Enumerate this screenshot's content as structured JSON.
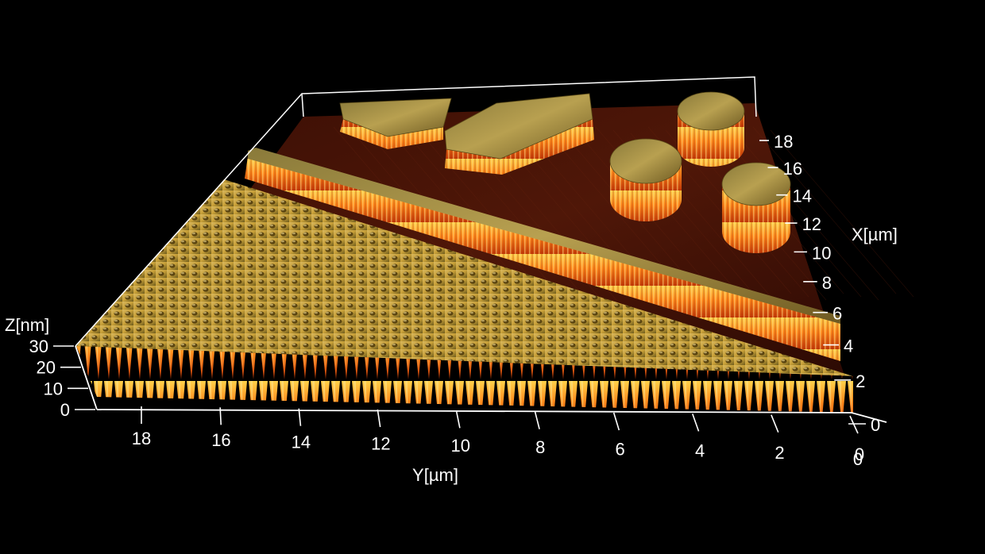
{
  "chart_data": {
    "type": "surface-3d",
    "title": "",
    "axes": {
      "x": {
        "label": "X[µm]",
        "ticks": [
          "0",
          "2",
          "4",
          "6",
          "8",
          "10",
          "12",
          "14",
          "16",
          "18"
        ],
        "range": [
          0,
          20
        ]
      },
      "y": {
        "label": "Y[µm]",
        "ticks": [
          "0",
          "2",
          "4",
          "6",
          "8",
          "10",
          "12",
          "14",
          "16",
          "18"
        ],
        "range": [
          0,
          20
        ]
      },
      "z": {
        "label": "Z[nm]",
        "ticks": [
          "0",
          "10",
          "20",
          "30"
        ],
        "range": [
          0,
          30
        ]
      }
    },
    "colors": {
      "background": "#000000",
      "axis": "#ffffff",
      "floor": "#4a1508",
      "feature_top": "#b89a3a",
      "feature_side": "#ff7a1a"
    }
  }
}
